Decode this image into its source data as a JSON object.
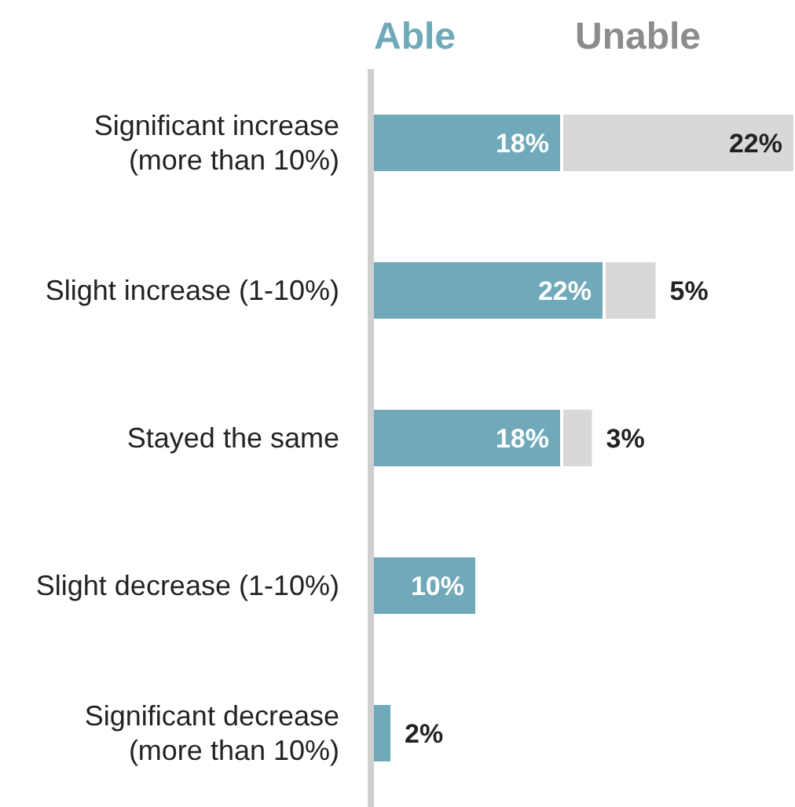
{
  "chart_data": {
    "type": "bar",
    "orientation": "horizontal",
    "stacked": true,
    "categories": [
      "Significant increase (more than 10%)",
      "Slight increase (1-10%)",
      "Stayed the same",
      "Slight decrease (1-10%)",
      "Significant decrease (more than 10%)"
    ],
    "series": [
      {
        "name": "Able",
        "color": "#6fa9ba",
        "values": [
          18,
          22,
          18,
          10,
          2
        ],
        "value_labels": [
          "18%",
          "22%",
          "18%",
          "10%",
          "2%"
        ]
      },
      {
        "name": "Unable",
        "color": "#d9d8d7",
        "values": [
          22,
          5,
          3,
          null,
          null
        ],
        "value_labels": [
          "22%",
          "5%",
          "3%",
          null,
          null
        ]
      }
    ],
    "legend": "top"
  }
}
